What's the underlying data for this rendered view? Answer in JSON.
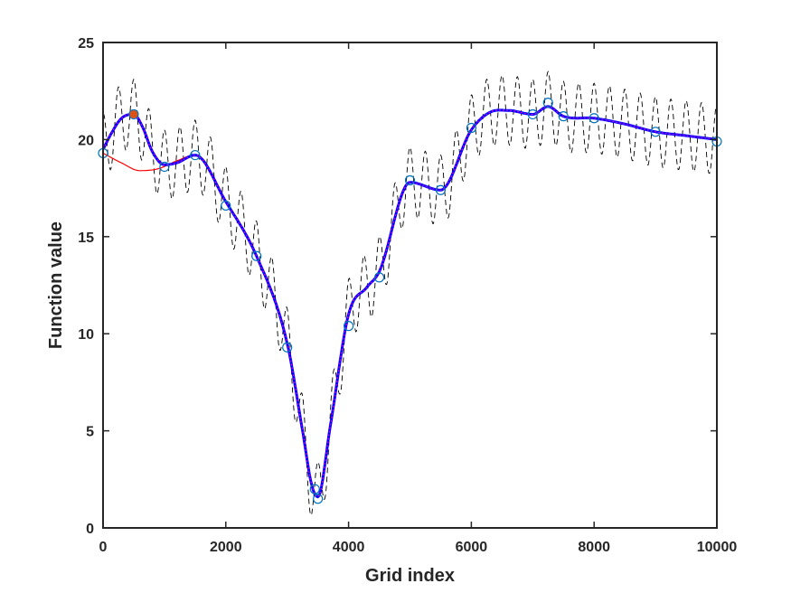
{
  "chart_data": {
    "type": "line",
    "title": "",
    "xlabel": "Grid index",
    "ylabel": "Function value",
    "xlim": [
      0,
      10000
    ],
    "ylim": [
      0,
      25
    ],
    "grid": false,
    "box": true,
    "x_ticks": [
      0,
      2000,
      4000,
      6000,
      8000,
      10000
    ],
    "x_tick_labels": [
      "0",
      "2000",
      "4000",
      "6000",
      "8000",
      "10000"
    ],
    "y_ticks": [
      0,
      5,
      10,
      15,
      20,
      25
    ],
    "y_tick_labels": [
      "0",
      "5",
      "10",
      "15",
      "20",
      "25"
    ],
    "colors": {
      "axes": "#262626",
      "dashed": "#000000",
      "red": "#ff0000",
      "blue": "#0000ff",
      "magenta": "#d400d4",
      "circles": "#0072bd",
      "highlight": "#d95319"
    },
    "series": [
      {
        "style": "smooth-red",
        "color": "#ff0000",
        "x": [
          0,
          300,
          600,
          900,
          1200,
          1500,
          2000,
          2500,
          3000,
          3250,
          3400,
          3500,
          3700,
          4000,
          4300,
          4500,
          5000,
          5500,
          6000,
          6300,
          6600,
          7000,
          7250,
          7500,
          8000,
          8500,
          9000,
          9500,
          10000
        ],
        "y": [
          19.3,
          18.8,
          18.4,
          18.5,
          18.9,
          19.2,
          16.8,
          14.0,
          9.5,
          5.0,
          2.2,
          1.6,
          5.2,
          11.0,
          12.4,
          13.2,
          17.8,
          17.4,
          20.5,
          21.4,
          21.5,
          21.3,
          21.7,
          21.2,
          21.1,
          20.8,
          20.4,
          20.2,
          20.0
        ]
      },
      {
        "style": "smooth-blue",
        "color": "#0000ff",
        "x": [
          0,
          150,
          300,
          500,
          650,
          800,
          1000,
          1200,
          1500,
          2000,
          2500,
          3000,
          3250,
          3400,
          3500,
          3700,
          4000,
          4300,
          4500,
          5000,
          5500,
          6000,
          6300,
          6600,
          7000,
          7250,
          7500,
          8000,
          8500,
          9000,
          9500,
          10000
        ],
        "y": [
          19.5,
          20.4,
          21.1,
          21.3,
          20.6,
          19.4,
          18.7,
          18.8,
          19.2,
          16.8,
          14.0,
          9.5,
          5.0,
          2.2,
          1.6,
          5.2,
          11.0,
          12.4,
          13.2,
          17.8,
          17.4,
          20.5,
          21.4,
          21.5,
          21.3,
          21.7,
          21.2,
          21.1,
          20.8,
          20.4,
          20.2,
          20.0
        ]
      },
      {
        "style": "dashed-black",
        "color": "#000000",
        "oscillation_period": 250,
        "oscillation_amplitude": 1.8
      }
    ],
    "markers": {
      "style": "open-circle",
      "color": "#0072bd",
      "x": [
        0,
        500,
        1000,
        1500,
        2000,
        2500,
        3000,
        3450,
        3500,
        4000,
        4500,
        5000,
        5500,
        6000,
        7000,
        7250,
        7500,
        8000,
        9000,
        10000
      ],
      "y": [
        19.3,
        21.3,
        18.6,
        19.2,
        16.6,
        14.0,
        9.3,
        2.0,
        1.5,
        10.4,
        12.9,
        17.9,
        17.4,
        20.6,
        21.3,
        21.9,
        21.2,
        21.1,
        20.4,
        19.9
      ]
    },
    "highlight_point": {
      "x": 500,
      "y": 21.3,
      "color": "#d95319"
    }
  }
}
